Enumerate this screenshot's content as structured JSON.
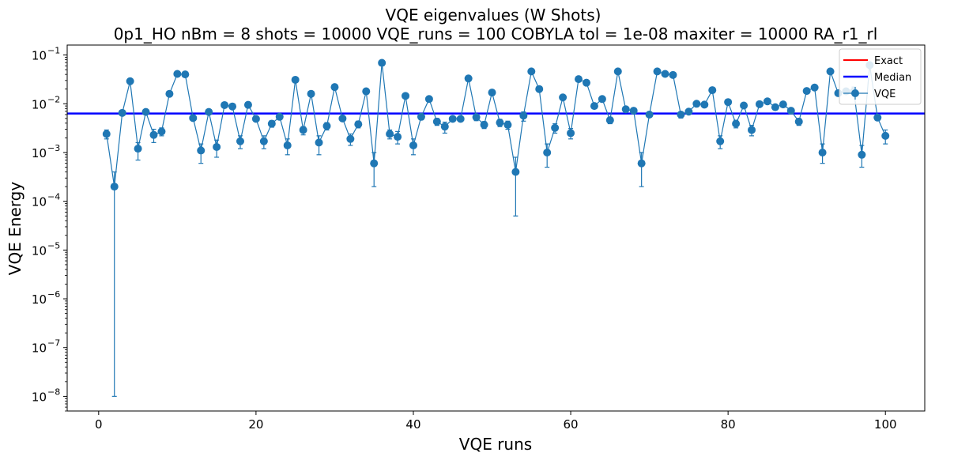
{
  "chart_data": {
    "type": "scatter",
    "title": "VQE eigenvalues (W Shots)",
    "subtitle": "0p1_HO    nBm = 8    shots = 10000   VQE_runs = 100    COBYLA    tol = 1e-08    maxiter = 10000    RA_r1_rl",
    "xlabel": "VQE runs",
    "ylabel": "VQE Energy",
    "xlim": [
      -4,
      105
    ],
    "ylim": [
      5e-09,
      0.16
    ],
    "yscale": "log",
    "x_ticks": [
      0,
      20,
      40,
      60,
      80,
      100
    ],
    "x_tick_labels": [
      "0",
      "20",
      "40",
      "60",
      "80",
      "100"
    ],
    "y_ticks": [
      1e-08,
      1e-07,
      1e-06,
      1e-05,
      0.0001,
      0.001,
      0.01,
      0.1
    ],
    "y_tick_bases": [
      "10",
      "10",
      "10",
      "10",
      "10",
      "10",
      "10",
      "10"
    ],
    "y_tick_exponents": [
      "−8",
      "−7",
      "−6",
      "−5",
      "−4",
      "−3",
      "−2",
      "−1"
    ],
    "grid": false,
    "legend_position": "top-right",
    "legend": [
      "Exact",
      "Median",
      "VQE"
    ],
    "colors": {
      "exact": "#ff0000",
      "median": "#0000ff",
      "vqe": "#1f77b4"
    },
    "median": 0.0063,
    "series": [
      {
        "name": "VQE",
        "x": [
          1,
          2,
          3,
          4,
          5,
          6,
          7,
          8,
          9,
          10,
          11,
          12,
          13,
          14,
          15,
          16,
          17,
          18,
          19,
          20,
          21,
          22,
          23,
          24,
          25,
          26,
          27,
          28,
          29,
          30,
          31,
          32,
          33,
          34,
          35,
          36,
          37,
          38,
          39,
          40,
          41,
          42,
          43,
          44,
          45,
          46,
          47,
          48,
          49,
          50,
          51,
          52,
          53,
          54,
          55,
          56,
          57,
          58,
          59,
          60,
          61,
          62,
          63,
          64,
          65,
          66,
          67,
          68,
          69,
          70,
          71,
          72,
          73,
          74,
          75,
          76,
          77,
          78,
          79,
          80,
          81,
          82,
          83,
          84,
          85,
          86,
          87,
          88,
          89,
          90,
          91,
          92,
          93,
          94,
          95,
          96,
          97,
          98,
          99,
          100
        ],
        "values": [
          0.0024,
          0.0002,
          0.0065,
          0.029,
          0.0012,
          0.0068,
          0.0023,
          0.0027,
          0.016,
          0.041,
          0.04,
          0.0051,
          0.0011,
          0.0068,
          0.0013,
          0.0094,
          0.0088,
          0.0017,
          0.0095,
          0.0049,
          0.0017,
          0.0039,
          0.0054,
          0.0014,
          0.031,
          0.0029,
          0.016,
          0.0016,
          0.0035,
          0.022,
          0.005,
          0.0019,
          0.0038,
          0.018,
          0.0006,
          0.069,
          0.0024,
          0.0021,
          0.0145,
          0.0014,
          0.0054,
          0.0125,
          0.0043,
          0.0034,
          0.0049,
          0.0049,
          0.033,
          0.0053,
          0.0037,
          0.017,
          0.0041,
          0.0037,
          0.0004,
          0.0057,
          0.046,
          0.02,
          0.001,
          0.0032,
          0.0135,
          0.0025,
          0.032,
          0.027,
          0.009,
          0.0125,
          0.0046,
          0.046,
          0.0077,
          0.0072,
          0.0006,
          0.006,
          0.046,
          0.041,
          0.039,
          0.006,
          0.0069,
          0.01,
          0.0096,
          0.019,
          0.0017,
          0.0108,
          0.0039,
          0.0092,
          0.0029,
          0.0098,
          0.0112,
          0.0085,
          0.0097,
          0.0072,
          0.0043,
          0.0183,
          0.0215,
          0.001,
          0.046,
          0.0165,
          0.018,
          0.018,
          0.0009,
          0.062,
          0.0052,
          0.0022
        ],
        "err_low": [
          0.0019,
          1e-08,
          0.0061,
          0.028,
          0.0007,
          0.0061,
          0.0016,
          0.0022,
          0.015,
          0.04,
          0.039,
          0.0046,
          0.0006,
          0.0062,
          0.0008,
          0.0088,
          0.0083,
          0.0012,
          0.009,
          0.0043,
          0.0012,
          0.0033,
          0.0048,
          0.0009,
          0.03,
          0.0023,
          0.015,
          0.0009,
          0.0029,
          0.021,
          0.0044,
          0.0014,
          0.0032,
          0.017,
          0.0002,
          0.068,
          0.0019,
          0.0015,
          0.0139,
          0.0009,
          0.0047,
          0.012,
          0.0036,
          0.0025,
          0.0044,
          0.0043,
          0.032,
          0.0045,
          0.0031,
          0.016,
          0.0034,
          0.003,
          5e-05,
          0.0044,
          0.045,
          0.019,
          0.0005,
          0.0025,
          0.013,
          0.0019,
          0.031,
          0.026,
          0.0084,
          0.012,
          0.0039,
          0.045,
          0.0071,
          0.0065,
          0.0002,
          0.0054,
          0.045,
          0.04,
          0.038,
          0.0051,
          0.0063,
          0.0094,
          0.009,
          0.018,
          0.0012,
          0.01,
          0.0032,
          0.0086,
          0.0022,
          0.0093,
          0.0106,
          0.0079,
          0.0091,
          0.0066,
          0.0036,
          0.0175,
          0.0205,
          0.0006,
          0.045,
          0.0159,
          0.017,
          0.017,
          0.0005,
          0.06,
          0.0046,
          0.0015
        ],
        "err_high": [
          0.0029,
          0.0004,
          0.0069,
          0.03,
          0.0016,
          0.0074,
          0.003,
          0.0032,
          0.017,
          0.042,
          0.041,
          0.0056,
          0.0015,
          0.0074,
          0.0018,
          0.01,
          0.0094,
          0.0022,
          0.01,
          0.0055,
          0.0022,
          0.0045,
          0.006,
          0.0019,
          0.032,
          0.0034,
          0.017,
          0.0022,
          0.0041,
          0.023,
          0.0056,
          0.0024,
          0.0044,
          0.019,
          0.001,
          0.07,
          0.0029,
          0.0027,
          0.0151,
          0.0019,
          0.0061,
          0.013,
          0.005,
          0.0042,
          0.0054,
          0.0055,
          0.034,
          0.0061,
          0.0043,
          0.018,
          0.0048,
          0.0044,
          0.0008,
          0.0068,
          0.047,
          0.021,
          0.0015,
          0.0039,
          0.014,
          0.0031,
          0.033,
          0.028,
          0.0096,
          0.013,
          0.0053,
          0.047,
          0.0083,
          0.0079,
          0.001,
          0.0066,
          0.047,
          0.042,
          0.04,
          0.0068,
          0.0075,
          0.0106,
          0.0102,
          0.02,
          0.0022,
          0.0116,
          0.0046,
          0.0098,
          0.0036,
          0.0103,
          0.0118,
          0.0091,
          0.0103,
          0.0078,
          0.005,
          0.019,
          0.0225,
          0.0015,
          0.047,
          0.0171,
          0.019,
          0.022,
          0.0014,
          0.064,
          0.0058,
          0.0029
        ]
      }
    ]
  }
}
